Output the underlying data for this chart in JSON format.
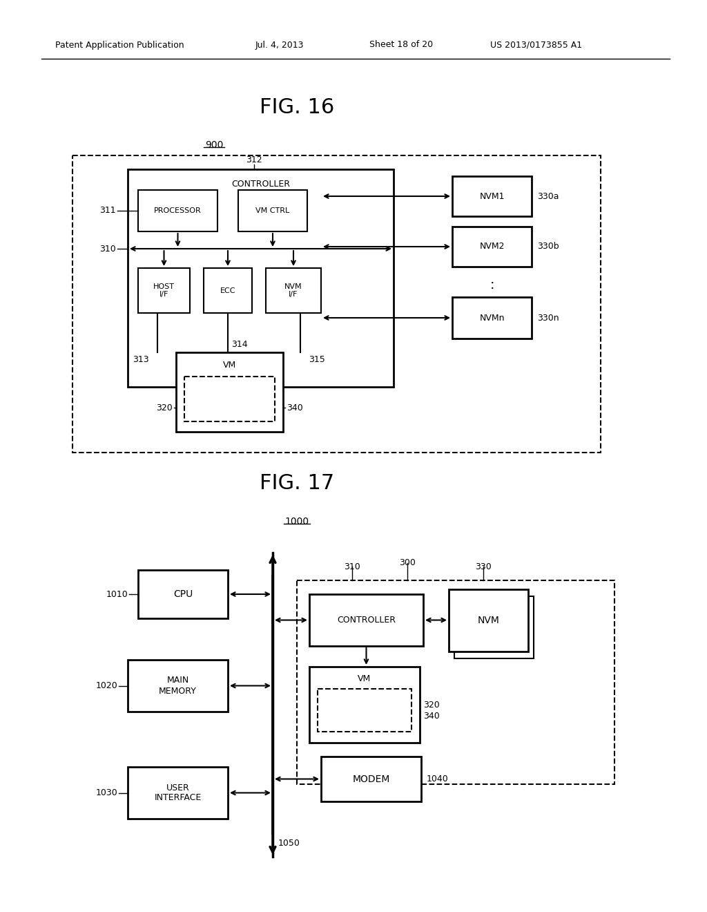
{
  "bg_color": "#ffffff",
  "header_text": "Patent Application Publication",
  "header_date": "Jul. 4, 2013",
  "header_sheet": "Sheet 18 of 20",
  "header_patent": "US 2013/0173855 A1",
  "fig16_title": "FIG. 16",
  "fig16_label": "900",
  "fig17_title": "FIG. 17",
  "fig17_label": "1000"
}
